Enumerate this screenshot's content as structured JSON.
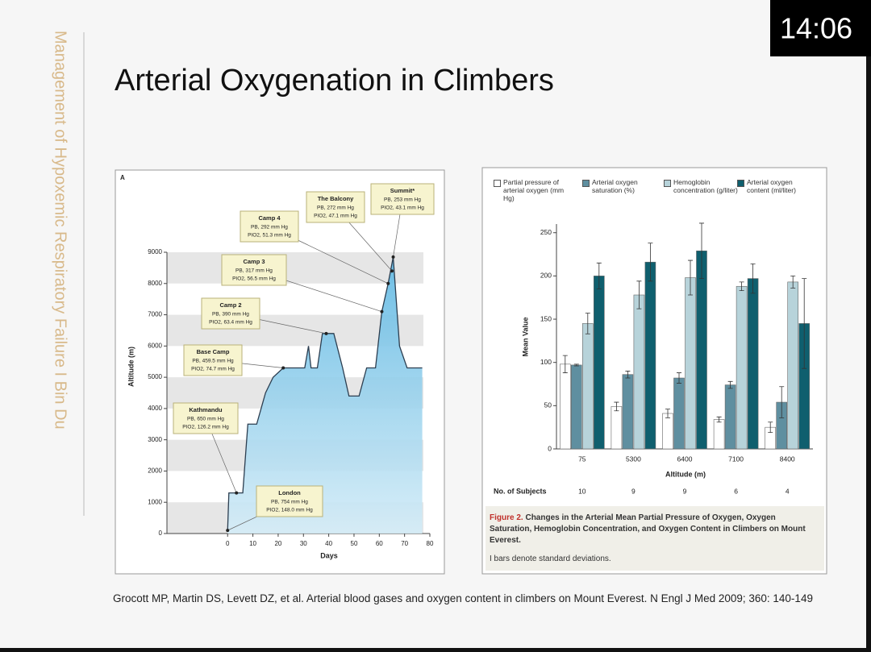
{
  "slide": {
    "title": "Arterial Oxygenation in Climbers",
    "sidebar": "Management of Hypoxemic Respiratory Failure I Bin Du",
    "citation": "Grocott MP, Martin DS, Levett DZ, et al. Arterial blood gases and oxygen content in climbers on Mount Everest. N Engl J Med 2009; 360: 140-149",
    "timer": "14:06"
  },
  "chart_data": [
    {
      "type": "area",
      "panel_label": "A",
      "x_label": "Days",
      "y_label": "Altitude (m)",
      "color": "#79c6ea",
      "x": [
        0,
        0.5,
        6,
        8,
        11.5,
        15,
        18,
        22,
        30.5,
        32,
        33,
        35.5,
        37.5,
        42,
        45.5,
        48,
        52,
        55,
        58.5,
        61,
        63.5,
        65.5,
        68,
        71,
        77
      ],
      "values": [
        100,
        1300,
        1300,
        3500,
        3500,
        4500,
        5000,
        5300,
        5300,
        6000,
        5300,
        5300,
        6400,
        6400,
        5300,
        4400,
        4400,
        5300,
        5300,
        7100,
        8000,
        8850,
        6000,
        5300,
        5300
      ],
      "xlim": [
        -24,
        80
      ],
      "ylim": [
        0,
        9000
      ],
      "xticks": [
        0,
        10,
        20,
        30,
        40,
        50,
        60,
        70,
        80
      ],
      "yticks": [
        0,
        1000,
        2000,
        3000,
        4000,
        5000,
        6000,
        7000,
        8000,
        9000
      ],
      "callouts": [
        {
          "name": "London",
          "pressure": "PB, 754 mm Hg",
          "pio2": "PIO2, 148.0 mm Hg",
          "x": 0,
          "y": 100
        },
        {
          "name": "Kathmandu",
          "pressure": "PB, 650 mm Hg",
          "pio2": "PIO2, 126.2 mm Hg",
          "x": 3.5,
          "y": 1300
        },
        {
          "name": "Base Camp",
          "pressure": "PB, 459.5 mm Hg",
          "pio2": "PIO2, 74.7 mm Hg",
          "x": 22,
          "y": 5300
        },
        {
          "name": "Camp 2",
          "pressure": "PB, 390 mm Hg",
          "pio2": "PIO2, 63.4 mm Hg",
          "x": 39,
          "y": 6400
        },
        {
          "name": "Camp 3",
          "pressure": "PB, 317 mm Hg",
          "pio2": "PIO2, 56.5 mm Hg",
          "x": 61,
          "y": 7100
        },
        {
          "name": "Camp 4",
          "pressure": "PB, 292 mm Hg",
          "pio2": "PIO2, 51.3 mm Hg",
          "x": 63.5,
          "y": 8000
        },
        {
          "name": "The Balcony",
          "pressure": "PB, 272 mm Hg",
          "pio2": "PIO2, 47.1 mm Hg",
          "x": 65,
          "y": 8400
        },
        {
          "name": "Summit*",
          "pressure": "PB, 253 mm Hg",
          "pio2": "PIO2, 43.1 mm Hg",
          "x": 65.5,
          "y": 8850
        }
      ]
    },
    {
      "type": "bar",
      "y_label": "Mean Value",
      "x_label": "Altitude (m)",
      "categories": [
        "75",
        "5300",
        "6400",
        "7100",
        "8400"
      ],
      "series": [
        {
          "name": "Partial pressure of arterial oxygen (mm Hg)",
          "color": "#ffffff",
          "values": [
            98,
            49,
            41,
            34,
            25
          ],
          "errors": [
            10,
            5,
            5,
            3,
            6
          ]
        },
        {
          "name": "Arterial oxygen saturation (%)",
          "color": "#5f8fa0",
          "values": [
            97,
            86,
            82,
            74,
            54
          ],
          "errors": [
            1,
            4,
            6,
            4,
            18
          ]
        },
        {
          "name": "Hemoglobin concentration (g/liter)",
          "color": "#b7d3da",
          "values": [
            145,
            178,
            198,
            188,
            193
          ],
          "errors": [
            12,
            16,
            20,
            5,
            7
          ]
        },
        {
          "name": "Arterial oxygen content (ml/liter)",
          "color": "#0f5f6e",
          "values": [
            200,
            216,
            229,
            197,
            145
          ],
          "errors": [
            15,
            22,
            32,
            17,
            52
          ]
        }
      ],
      "ylim": [
        0,
        260
      ],
      "yticks": [
        0,
        50,
        100,
        150,
        200,
        250
      ],
      "subjects_label": "No. of Subjects",
      "subjects": [
        10,
        9,
        9,
        6,
        4
      ],
      "caption_label": "Figure 2.",
      "caption": "Changes in the Arterial Mean Partial Pressure of Oxygen, Oxygen Saturation, Hemoglobin Concentration, and Oxygen Content in Climbers on Mount Everest.",
      "note": "I bars denote standard deviations."
    }
  ]
}
